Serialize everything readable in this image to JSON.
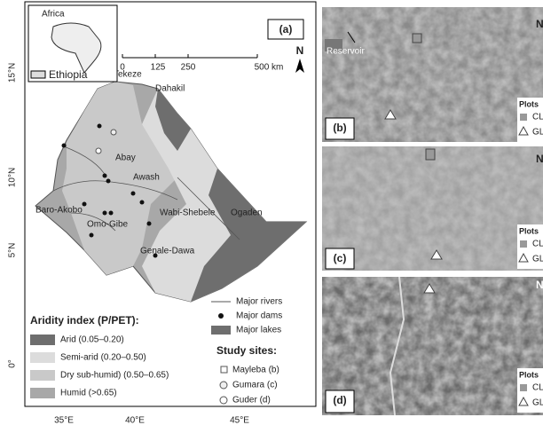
{
  "panel_a": {
    "label": "(a)",
    "inset": {
      "title": "Africa",
      "legend": "Ethiopia"
    },
    "scale": [
      "0",
      "125",
      "250",
      "500 km"
    ],
    "north": "N",
    "lat_labels": [
      "15°N",
      "10°N",
      "5°N",
      "0°"
    ],
    "lon_labels": [
      "35°E",
      "40°E",
      "45°E"
    ],
    "basins": [
      "Tekeze",
      "Dahakil",
      "Abay",
      "Awash",
      "Baro-Akobo",
      "Wabi-Shebele",
      "Ogaden",
      "Omo-Gibe",
      "Genale-Dawa"
    ],
    "features": [
      "Major rivers",
      "Major dams",
      "Major lakes"
    ],
    "aridity": {
      "title": "Aridity index (P/PET):",
      "classes": [
        "Arid (0.05–0.20)",
        "Semi-arid (0.20–0.50)",
        "Dry sub-humid) (0.50–0.65)",
        "Humid (>0.65)"
      ]
    },
    "sites": {
      "title": "Study sites:",
      "items": [
        "Mayleba (b)",
        "Gumara (c)",
        "Guder (d)"
      ]
    }
  },
  "panel_b": {
    "label": "(b)",
    "annotation": "Reservoir",
    "north": "N",
    "legend": {
      "title": "Plots",
      "items": [
        "CL",
        "GL"
      ]
    }
  },
  "panel_c": {
    "label": "(c)",
    "north": "N",
    "legend": {
      "title": "Plots",
      "items": [
        "CL",
        "GL"
      ]
    }
  },
  "panel_d": {
    "label": "(d)",
    "north": "N",
    "legend": {
      "title": "Plots",
      "items": [
        "CL",
        "GL"
      ]
    }
  }
}
